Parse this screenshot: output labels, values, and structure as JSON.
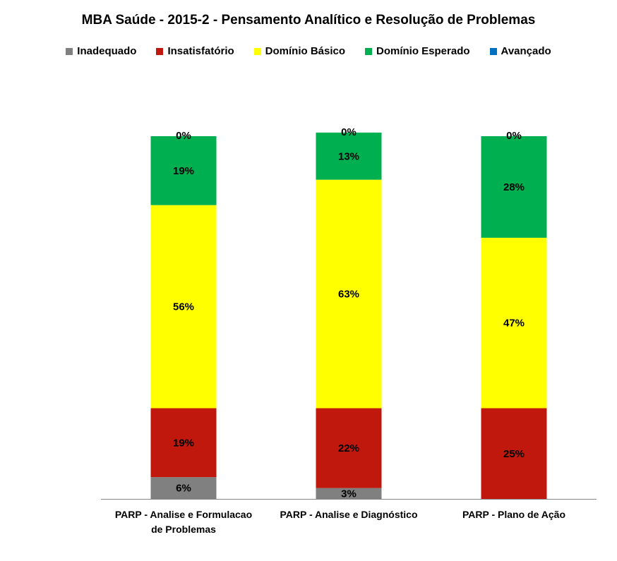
{
  "chart_data": {
    "type": "bar",
    "stacked": true,
    "percent_stacked": true,
    "title": "MBA Saúde - 2015-2 - Pensamento Analítico e Resolução de Problemas",
    "categories": [
      [
        "PARP - Analise e Formulacao",
        "de Problemas"
      ],
      [
        "PARP - Analise e Diagnóstico"
      ],
      [
        "PARP - Plano de Ação"
      ]
    ],
    "series": [
      {
        "name": "Inadequado",
        "color": "#808080",
        "values": [
          6,
          3,
          0
        ],
        "labels": [
          "6%",
          "3%",
          "0%"
        ]
      },
      {
        "name": "Insatisfatório",
        "color": "#c0180c",
        "values": [
          19,
          22,
          25
        ],
        "labels": [
          "19%",
          "22%",
          "25%"
        ]
      },
      {
        "name": "Domínio Básico",
        "color": "#ffff00",
        "values": [
          56,
          63,
          47
        ],
        "labels": [
          "56%",
          "63%",
          "47%"
        ]
      },
      {
        "name": "Domínio Esperado",
        "color": "#00b050",
        "values": [
          19,
          13,
          28
        ],
        "labels": [
          "19%",
          "13%",
          "28%"
        ]
      },
      {
        "name": "Avançado",
        "color": "#0070c0",
        "values": [
          0,
          0,
          0
        ],
        "labels": [
          "0%",
          "0%",
          "0%"
        ]
      }
    ],
    "legend_position": "top",
    "ylim": [
      0,
      100
    ],
    "grid": false
  }
}
